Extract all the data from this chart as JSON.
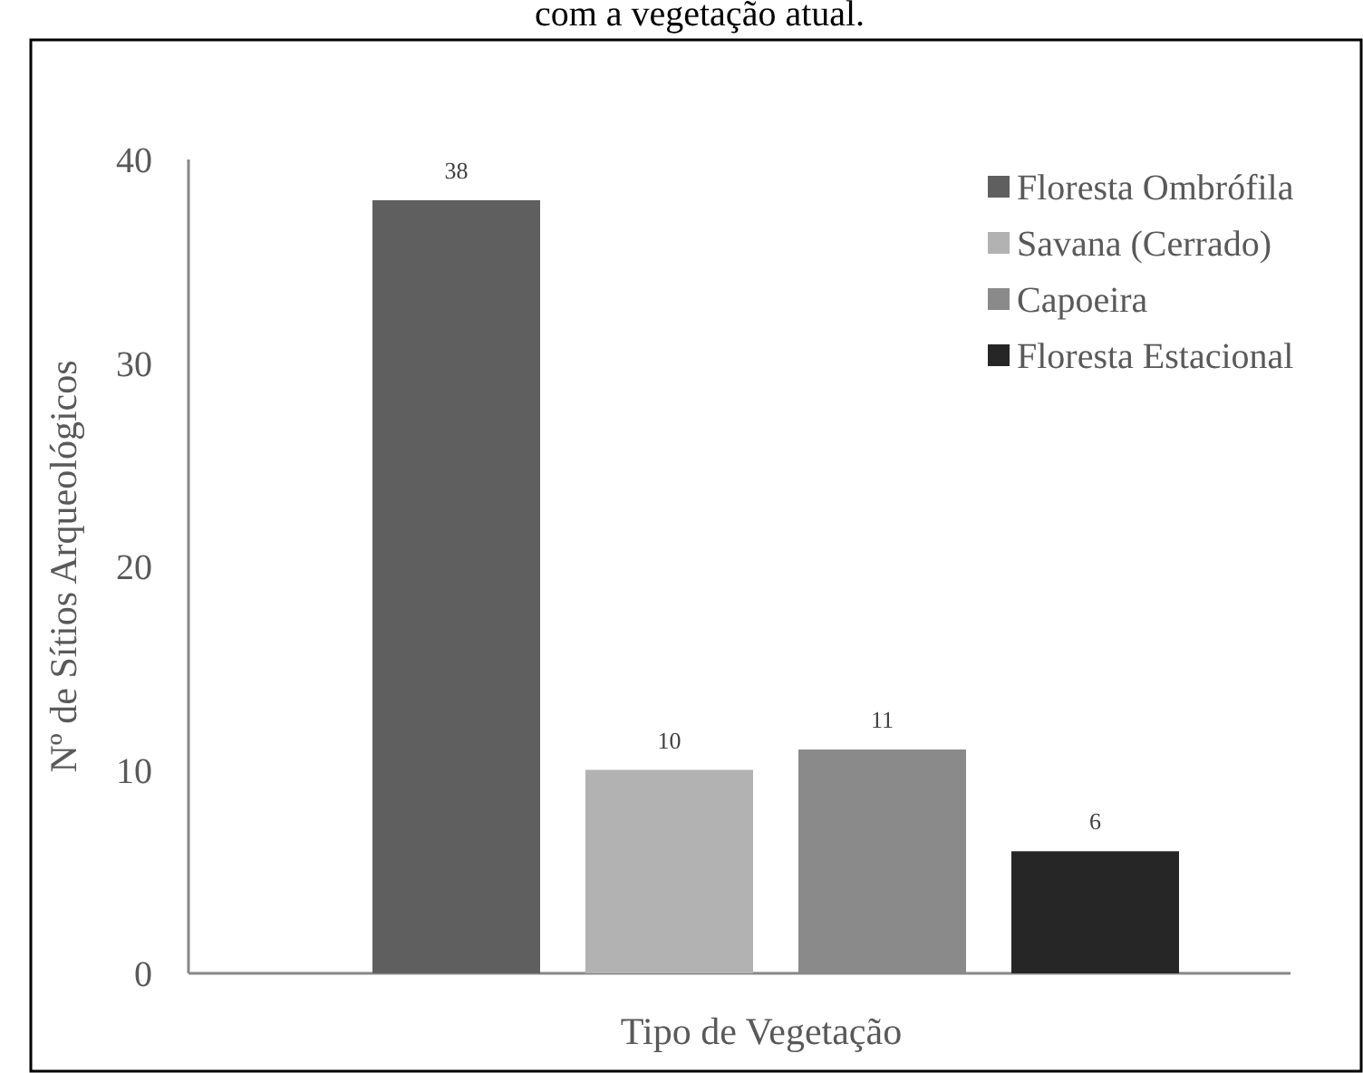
{
  "chart_data": {
    "type": "bar",
    "title": "com a vegetação atual.",
    "xlabel": "Tipo de Vegetação",
    "ylabel": "Nº de Sítios Arqueológicos",
    "categories": [
      null
    ],
    "series": [
      {
        "name": "Floresta Ombrófila",
        "color": "#5f5f5f",
        "values": [
          38
        ]
      },
      {
        "name": "Savana (Cerrado)",
        "color": "#b2b2b2",
        "values": [
          10
        ]
      },
      {
        "name": "Capoeira",
        "color": "#8a8a8a",
        "values": [
          11
        ]
      },
      {
        "name": "Floresta Estacional",
        "color": "#262626",
        "values": [
          6
        ]
      }
    ],
    "ylim": [
      0,
      40
    ],
    "yticks": [
      0,
      10,
      20,
      30,
      40
    ],
    "data_labels": true,
    "legend": "top right",
    "grid": false
  }
}
